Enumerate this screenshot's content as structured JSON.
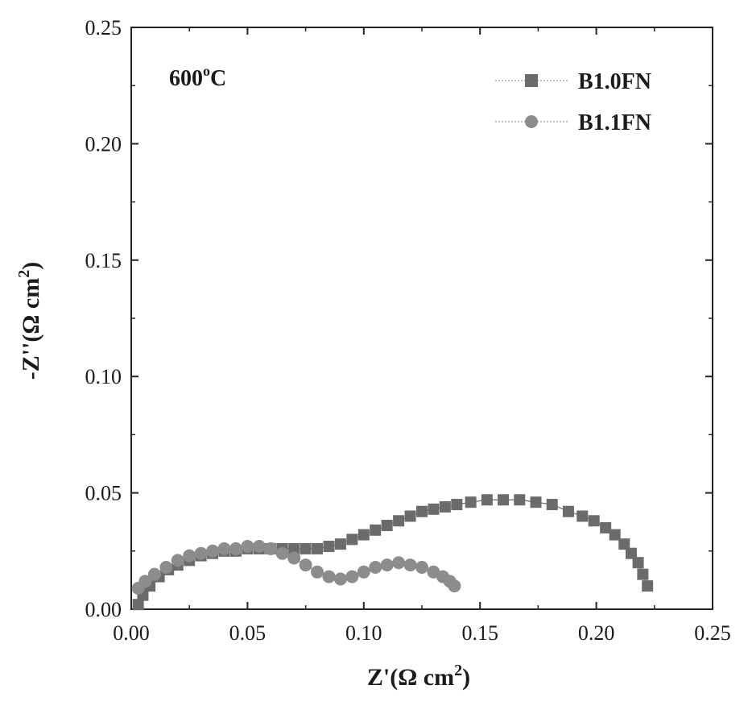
{
  "chart_data": {
    "type": "scatter",
    "title": "",
    "annotation": {
      "base": "600",
      "sup": "o",
      "tail": "C"
    },
    "xlabel": {
      "base": "Z'(Ω cm",
      "sup": "2",
      "tail": ")"
    },
    "ylabel": {
      "base": "-Z''(Ω cm",
      "sup": "2",
      "tail": ")"
    },
    "xlim": [
      0.0,
      0.25
    ],
    "ylim": [
      0.0,
      0.25
    ],
    "xticks": [
      "0.00",
      "0.05",
      "0.10",
      "0.15",
      "0.20",
      "0.25"
    ],
    "yticks": [
      "0.00",
      "0.05",
      "0.10",
      "0.15",
      "0.20",
      "0.25"
    ],
    "grid": false,
    "legend_position": "top-right",
    "series": [
      {
        "name": "B1.0FN",
        "marker": "square",
        "color": "#6b6b6b",
        "x": [
          0.003,
          0.005,
          0.008,
          0.012,
          0.016,
          0.02,
          0.025,
          0.03,
          0.035,
          0.04,
          0.045,
          0.05,
          0.055,
          0.06,
          0.065,
          0.07,
          0.075,
          0.08,
          0.085,
          0.09,
          0.095,
          0.1,
          0.105,
          0.11,
          0.115,
          0.12,
          0.125,
          0.13,
          0.135,
          0.14,
          0.146,
          0.153,
          0.16,
          0.167,
          0.174,
          0.181,
          0.188,
          0.194,
          0.199,
          0.204,
          0.208,
          0.212,
          0.215,
          0.218,
          0.22,
          0.222
        ],
        "y": [
          0.002,
          0.006,
          0.01,
          0.014,
          0.017,
          0.019,
          0.021,
          0.023,
          0.024,
          0.025,
          0.025,
          0.026,
          0.026,
          0.026,
          0.026,
          0.026,
          0.026,
          0.026,
          0.027,
          0.028,
          0.03,
          0.032,
          0.034,
          0.036,
          0.038,
          0.04,
          0.042,
          0.043,
          0.044,
          0.045,
          0.046,
          0.047,
          0.047,
          0.047,
          0.046,
          0.045,
          0.042,
          0.04,
          0.038,
          0.035,
          0.032,
          0.028,
          0.024,
          0.02,
          0.015,
          0.01
        ]
      },
      {
        "name": "B1.1FN",
        "marker": "circle",
        "color": "#8c8c8c",
        "x": [
          0.003,
          0.006,
          0.01,
          0.015,
          0.02,
          0.025,
          0.03,
          0.035,
          0.04,
          0.045,
          0.05,
          0.055,
          0.06,
          0.065,
          0.07,
          0.075,
          0.08,
          0.085,
          0.09,
          0.095,
          0.1,
          0.105,
          0.11,
          0.115,
          0.12,
          0.125,
          0.13,
          0.134,
          0.137,
          0.139
        ],
        "y": [
          0.009,
          0.012,
          0.015,
          0.018,
          0.021,
          0.023,
          0.024,
          0.025,
          0.026,
          0.026,
          0.027,
          0.027,
          0.026,
          0.024,
          0.022,
          0.019,
          0.016,
          0.014,
          0.013,
          0.014,
          0.016,
          0.018,
          0.019,
          0.02,
          0.019,
          0.018,
          0.016,
          0.014,
          0.012,
          0.01
        ]
      }
    ]
  }
}
